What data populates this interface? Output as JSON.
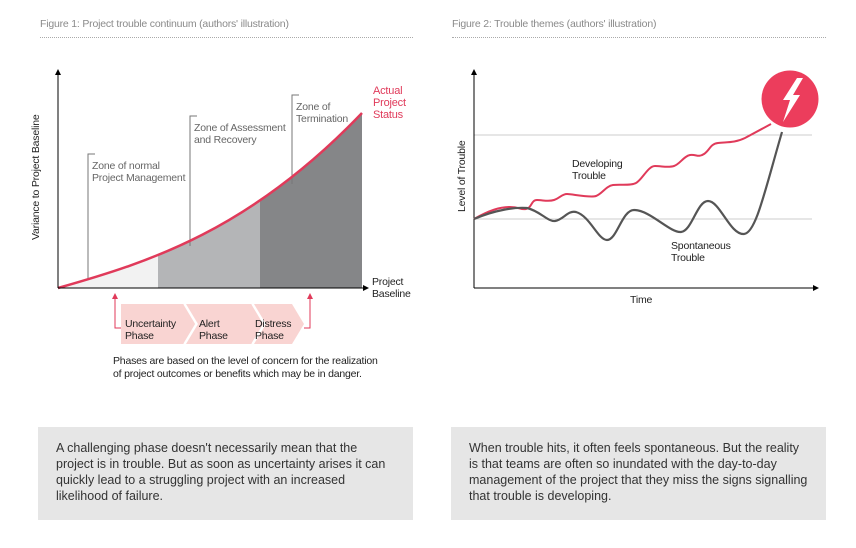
{
  "figure1": {
    "title": "Figure 1: Project trouble continuum (authors' illustration)",
    "y_axis_label": "Variance to Project Baseline",
    "x_axis_label_line1": "Project",
    "x_axis_label_line2": "Baseline",
    "curve_label_line1": "Actual",
    "curve_label_line2": "Project",
    "curve_label_line3": "Status",
    "zones": [
      {
        "line1": "Zone of normal",
        "line2": "Project Management"
      },
      {
        "line1": "Zone of Assessment",
        "line2": "and Recovery"
      },
      {
        "line1": "Zone of",
        "line2": "Termination"
      }
    ],
    "phases": [
      {
        "line1": "Uncertainty",
        "line2": "Phase"
      },
      {
        "line1": "Alert",
        "line2": "Phase"
      },
      {
        "line1": "Distress",
        "line2": "Phase"
      }
    ],
    "caption_line1": "Phases are based on the level of concern for the realization",
    "caption_line2": "of project outcomes or benefits which may be in danger.",
    "colors": {
      "curve": "#e03a5a",
      "zone1": "#f2f2f2",
      "zone2": "#b4b5b7",
      "zone3": "#858688",
      "phase": "#f9d4d2"
    }
  },
  "figure2": {
    "title": "Figure 2: Trouble themes (authors' illustration)",
    "y_axis_label": "Level of Trouble",
    "x_axis_label": "Time",
    "developing_line1": "Developing",
    "developing_line2": "Trouble",
    "spontaneous_line1": "Spontaneous",
    "spontaneous_line2": "Trouble",
    "icon": "lightning-bolt-icon",
    "colors": {
      "developing": "#e03a5a",
      "spontaneous": "#555555",
      "badge": "#ec3d5c"
    }
  },
  "callouts": {
    "left": "A challenging phase doesn't necessarily mean that the project is in trouble. But as soon as uncertainty arises it can quickly lead to a struggling project with an increased likelihood of failure.",
    "right": "When trouble hits, it often feels spontaneous. But the reality is that teams are often so inundated with the day-to-day management of the project that they miss the signs signalling that trouble is developing."
  }
}
